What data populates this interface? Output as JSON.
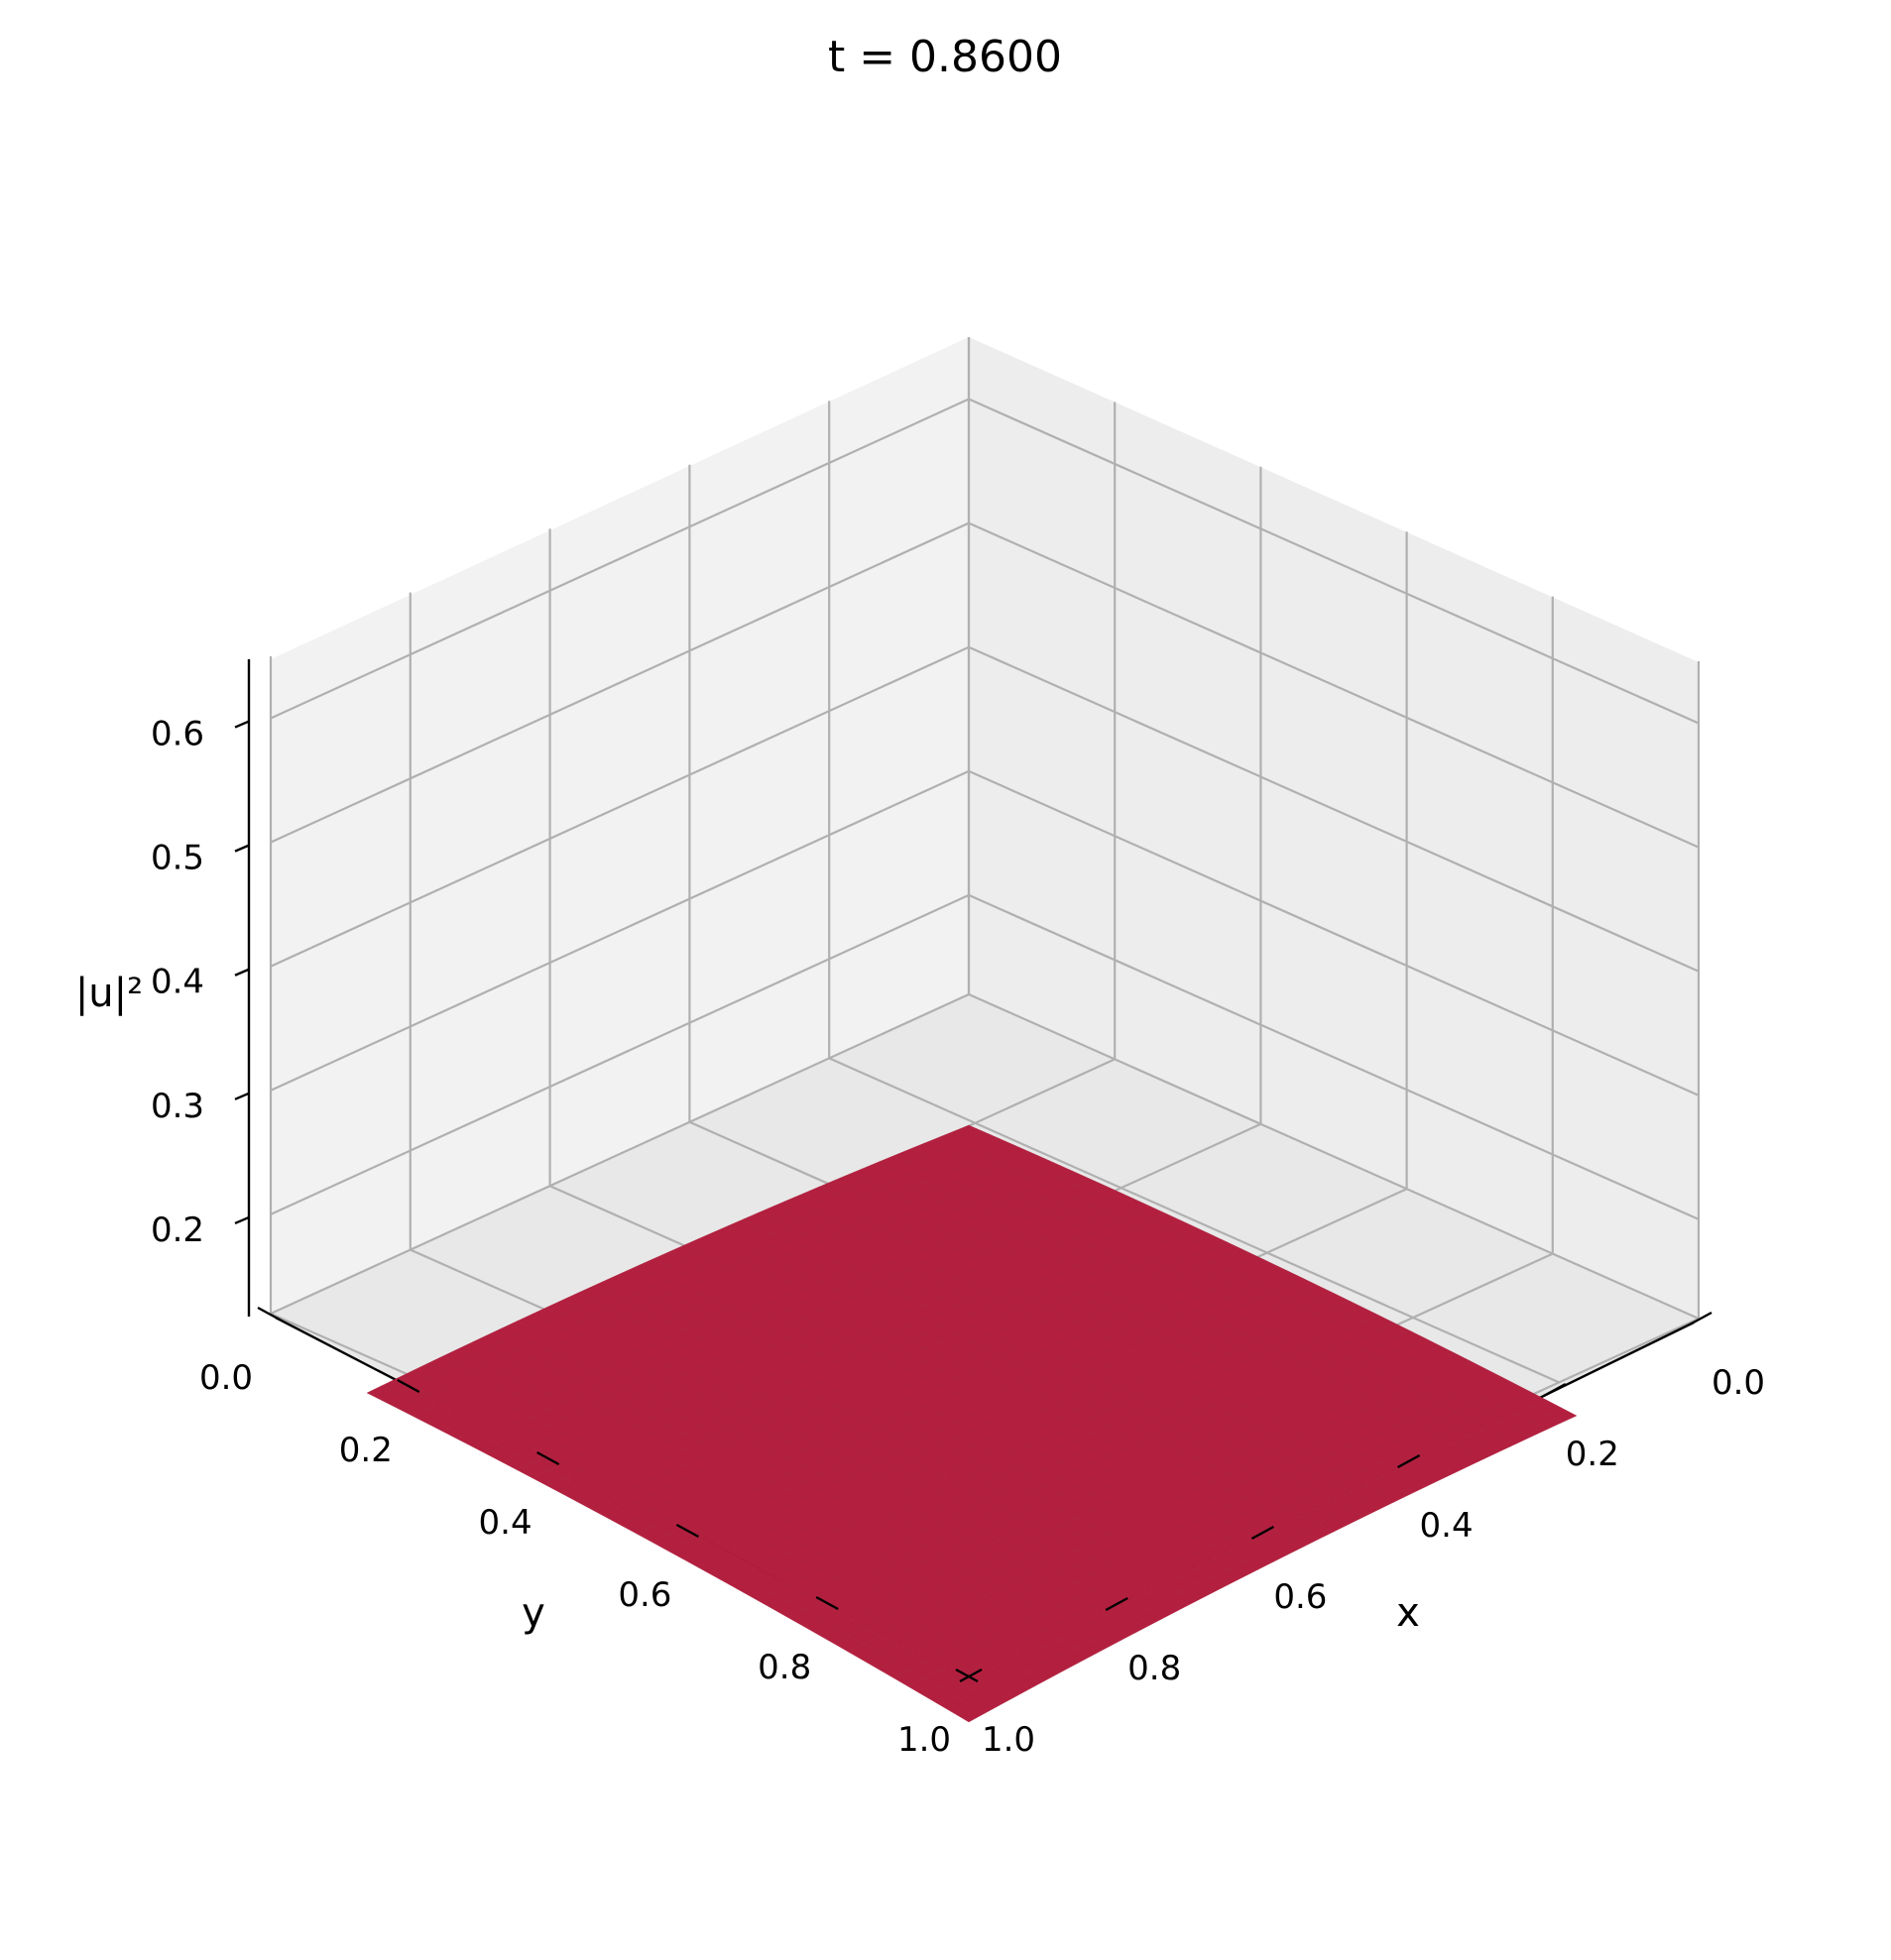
{
  "chart_data": {
    "type": "surface3d",
    "title": "t = 0.8600",
    "xlabel": "x",
    "ylabel": "y",
    "zlabel": "|u|²",
    "x_ticks": [
      "0.0",
      "0.2",
      "0.4",
      "0.6",
      "0.8",
      "1.0"
    ],
    "y_ticks": [
      "0.0",
      "0.2",
      "0.4",
      "0.6",
      "0.8",
      "1.0"
    ],
    "z_ticks": [
      "0.2",
      "0.3",
      "0.4",
      "0.5",
      "0.6"
    ],
    "xlim": [
      0,
      1
    ],
    "ylim": [
      0,
      1
    ],
    "zlim": [
      0.12,
      0.65
    ],
    "grid": true,
    "surface": {
      "color": "#b3203f",
      "z_center": 0.132,
      "z_corner": 0.115,
      "description_shape": "nearly flat dome, slightly higher at the center"
    }
  }
}
